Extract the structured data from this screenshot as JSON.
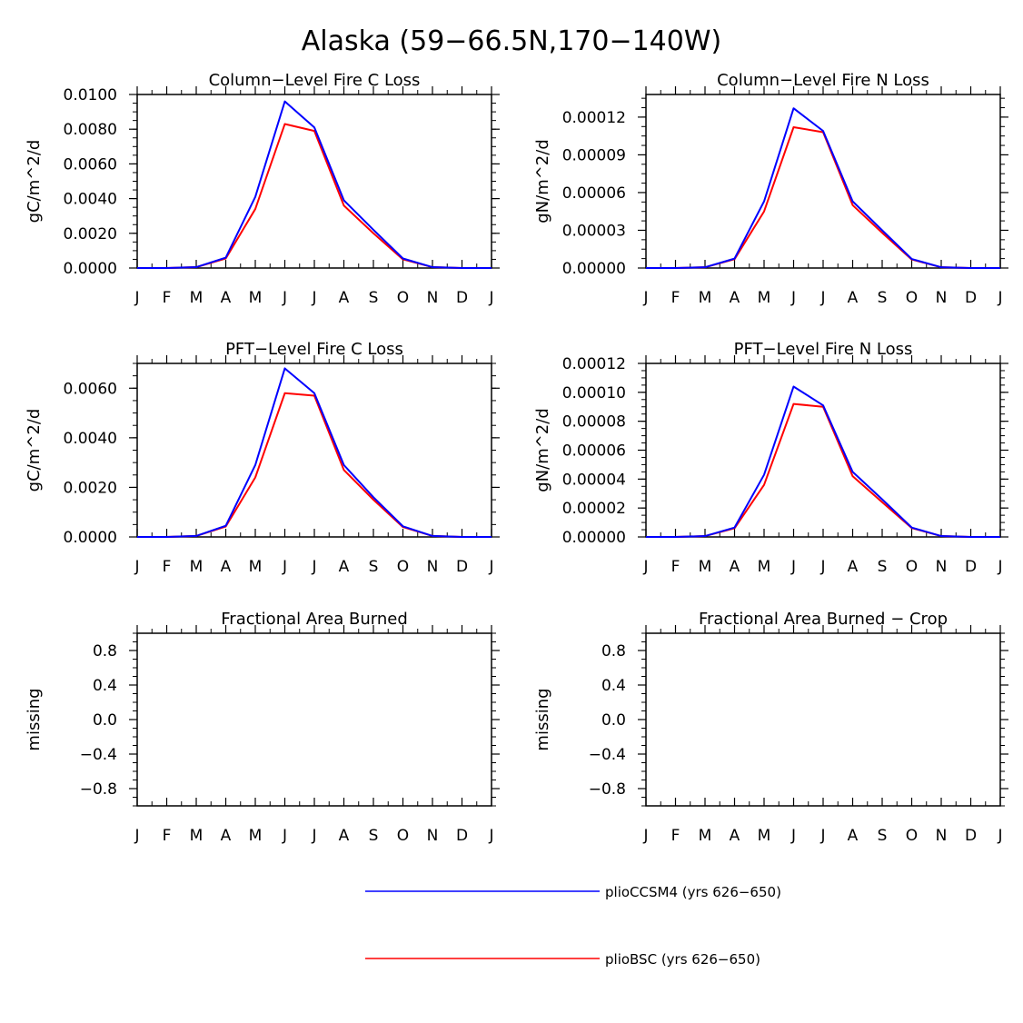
{
  "figure": {
    "title": "Alaska (59−66.5N,170−140W)"
  },
  "colors": {
    "series_1": "#0000ff",
    "series_2": "#ff0000",
    "axis": "#000000"
  },
  "legend": {
    "items": [
      {
        "label": "plioCCSM4 (yrs 626−650)",
        "color": "#0000ff"
      },
      {
        "label": "plioBSC (yrs 626−650)",
        "color": "#ff0000"
      }
    ]
  },
  "chart_data": [
    {
      "type": "line",
      "title": "Column−Level Fire C Loss",
      "ylabel": "gC/m^2/d",
      "xlabel": "",
      "categories": [
        "J",
        "F",
        "M",
        "A",
        "M",
        "J",
        "J",
        "A",
        "S",
        "O",
        "N",
        "D",
        "J"
      ],
      "ylim": [
        0,
        0.01
      ],
      "yticks": [
        "0.0000",
        "0.0020",
        "0.0040",
        "0.0060",
        "0.0080",
        "0.0100"
      ],
      "grid": false,
      "series": [
        {
          "name": "plioCCSM4 (yrs 626−650)",
          "values": [
            0,
            0,
            5e-05,
            0.0006,
            0.0041,
            0.0096,
            0.0081,
            0.0039,
            0.0022,
            0.00055,
            5e-05,
            0,
            0
          ]
        },
        {
          "name": "plioBSC (yrs 626−650)",
          "values": [
            0,
            0,
            5e-05,
            0.00055,
            0.0034,
            0.0083,
            0.0079,
            0.0036,
            0.002,
            0.0005,
            5e-05,
            0,
            0
          ]
        }
      ]
    },
    {
      "type": "line",
      "title": "Column−Level Fire N Loss",
      "ylabel": "gN/m^2/d",
      "xlabel": "",
      "categories": [
        "J",
        "F",
        "M",
        "A",
        "M",
        "J",
        "J",
        "A",
        "S",
        "O",
        "N",
        "D",
        "J"
      ],
      "ylim": [
        0,
        0.000138
      ],
      "yticks": [
        "0.00000",
        "0.00003",
        "0.00006",
        "0.00009",
        "0.00012"
      ],
      "grid": false,
      "series": [
        {
          "name": "plioCCSM4 (yrs 626−650)",
          "values": [
            0,
            0,
            6e-07,
            7.5e-06,
            5.3e-05,
            0.000127,
            0.000109,
            5.3e-05,
            3e-05,
            7.2e-06,
            6e-07,
            0,
            0
          ]
        },
        {
          "name": "plioBSC (yrs 626−650)",
          "values": [
            0,
            0,
            6e-07,
            7e-06,
            4.5e-05,
            0.000112,
            0.000108,
            5e-05,
            2.8e-05,
            6.8e-06,
            6e-07,
            0,
            0
          ]
        }
      ]
    },
    {
      "type": "line",
      "title": "PFT−Level Fire C Loss",
      "ylabel": "gC/m^2/d",
      "xlabel": "",
      "categories": [
        "J",
        "F",
        "M",
        "A",
        "M",
        "J",
        "J",
        "A",
        "S",
        "O",
        "N",
        "D",
        "J"
      ],
      "ylim": [
        0,
        0.007
      ],
      "yticks": [
        "0.0000",
        "0.0020",
        "0.0040",
        "0.0060"
      ],
      "grid": false,
      "series": [
        {
          "name": "plioCCSM4 (yrs 626−650)",
          "values": [
            0,
            0,
            4e-05,
            0.00045,
            0.0029,
            0.0068,
            0.0058,
            0.0029,
            0.0016,
            0.00043,
            4e-05,
            0,
            0
          ]
        },
        {
          "name": "plioBSC (yrs 626−650)",
          "values": [
            0,
            0,
            4e-05,
            0.00042,
            0.0024,
            0.0058,
            0.0057,
            0.0027,
            0.0015,
            0.0004,
            4e-05,
            0,
            0
          ]
        }
      ]
    },
    {
      "type": "line",
      "title": "PFT−Level Fire N Loss",
      "ylabel": "gN/m^2/d",
      "xlabel": "",
      "categories": [
        "J",
        "F",
        "M",
        "A",
        "M",
        "J",
        "J",
        "A",
        "S",
        "O",
        "N",
        "D",
        "J"
      ],
      "ylim": [
        0,
        0.00012
      ],
      "yticks": [
        "0.00000",
        "0.00002",
        "0.00004",
        "0.00006",
        "0.00008",
        "0.00010",
        "0.00012"
      ],
      "grid": false,
      "series": [
        {
          "name": "plioCCSM4 (yrs 626−650)",
          "values": [
            0,
            0,
            6e-07,
            6.5e-06,
            4.3e-05,
            0.000104,
            9.1e-05,
            4.5e-05,
            2.6e-05,
            6.5e-06,
            6e-07,
            0,
            0
          ]
        },
        {
          "name": "plioBSC (yrs 626−650)",
          "values": [
            0,
            0,
            6e-07,
            6e-06,
            3.6e-05,
            9.2e-05,
            9e-05,
            4.2e-05,
            2.4e-05,
            6.2e-06,
            6e-07,
            0,
            0
          ]
        }
      ]
    },
    {
      "type": "line",
      "title": "Fractional Area Burned",
      "ylabel": "missing",
      "xlabel": "",
      "categories": [
        "J",
        "F",
        "M",
        "A",
        "M",
        "J",
        "J",
        "A",
        "S",
        "O",
        "N",
        "D",
        "J"
      ],
      "ylim": [
        -1,
        1
      ],
      "yticks": [
        "−0.8",
        "−0.4",
        "0.0",
        "0.4",
        "0.8"
      ],
      "ytick_values": [
        -0.8,
        -0.4,
        0,
        0.4,
        0.8
      ],
      "grid": false,
      "series": []
    },
    {
      "type": "line",
      "title": "Fractional Area Burned − Crop",
      "ylabel": "missing",
      "xlabel": "",
      "categories": [
        "J",
        "F",
        "M",
        "A",
        "M",
        "J",
        "J",
        "A",
        "S",
        "O",
        "N",
        "D",
        "J"
      ],
      "ylim": [
        -1,
        1
      ],
      "yticks": [
        "−0.8",
        "−0.4",
        "0.0",
        "0.4",
        "0.8"
      ],
      "ytick_values": [
        -0.8,
        -0.4,
        0,
        0.4,
        0.8
      ],
      "grid": false,
      "series": []
    }
  ]
}
